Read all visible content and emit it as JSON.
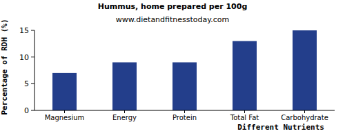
{
  "chart_data": {
    "type": "bar",
    "title": "Hummus, home prepared per 100g",
    "subtitle": "www.dietandfitnesstoday.com",
    "x_label": "Different Nutrients",
    "y_label": "Percentage of RDH (%)",
    "categories": [
      "Magnesium",
      "Energy",
      "Protein",
      "Total Fat",
      "Carbohydrate"
    ],
    "values": [
      7,
      9,
      9,
      13,
      15
    ],
    "color": "#233e8b",
    "ylim": [
      0,
      15
    ],
    "yticks": [
      0,
      5,
      10,
      15
    ],
    "grid": false
  }
}
